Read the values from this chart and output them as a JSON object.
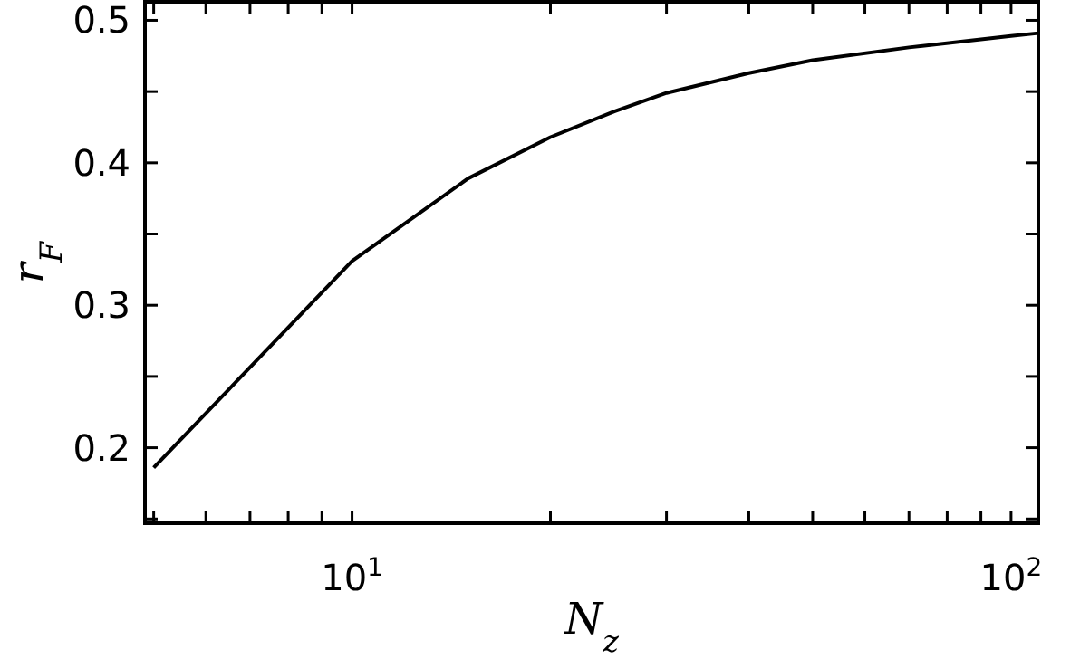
{
  "chart_data": {
    "type": "line",
    "xlabel": "N$_{z}$",
    "ylabel": "r$_{F}$",
    "log": "x",
    "xlim": [
      4.85,
      110
    ],
    "ylim": [
      0.147,
      0.513
    ],
    "xticks": [
      {
        "value": 5,
        "label": null
      },
      {
        "value": 6,
        "label": null
      },
      {
        "value": 7,
        "label": null
      },
      {
        "value": 8,
        "label": null
      },
      {
        "value": 9,
        "label": null
      },
      {
        "value": 10,
        "label": "10$^{1}$"
      },
      {
        "value": 20,
        "label": null
      },
      {
        "value": 30,
        "label": null
      },
      {
        "value": 40,
        "label": null
      },
      {
        "value": 50,
        "label": null
      },
      {
        "value": 60,
        "label": null
      },
      {
        "value": 70,
        "label": null
      },
      {
        "value": 80,
        "label": null
      },
      {
        "value": 90,
        "label": null
      },
      {
        "value": 100,
        "label": "10$^{2}$"
      }
    ],
    "yticks": [
      {
        "value": 0.15,
        "label": null
      },
      0.2,
      {
        "value": 0.25,
        "label": null
      },
      0.3,
      {
        "value": 0.35,
        "label": null
      },
      0.4,
      {
        "value": 0.45,
        "label": null
      },
      0.5
    ],
    "grid": false,
    "marker": "none",
    "line_style": "solid",
    "series": [
      {
        "color": "#000000",
        "x": [
          5,
          10,
          15,
          20,
          25,
          30,
          40,
          50,
          70,
          100,
          110
        ],
        "values": [
          0.186,
          0.331,
          0.389,
          0.418,
          0.436,
          0.449,
          0.463,
          0.472,
          0.481,
          0.489,
          0.491
        ]
      }
    ]
  }
}
